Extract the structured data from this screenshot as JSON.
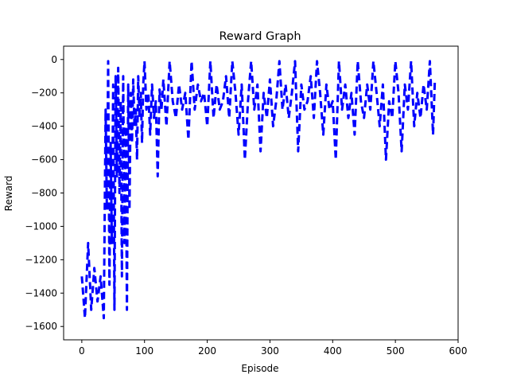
{
  "chart_data": {
    "type": "line",
    "title": "Reward Graph",
    "xlabel": "Episode",
    "ylabel": "Reward",
    "xlim": [
      -29,
      600
    ],
    "ylim": [
      -1680,
      80
    ],
    "xticks": [
      0,
      100,
      200,
      300,
      400,
      500,
      600
    ],
    "yticks": [
      0,
      -200,
      -400,
      -600,
      -800,
      -1000,
      -1200,
      -1400,
      -1600
    ],
    "line_style": "dashed",
    "grid": false,
    "colors": {
      "series": "#0000ff",
      "axes": "#000000",
      "background": "#ffffff"
    },
    "series": [
      {
        "name": "",
        "x": [
          0,
          5,
          10,
          15,
          20,
          25,
          30,
          35,
          38,
          40,
          42,
          44,
          46,
          48,
          50,
          52,
          54,
          56,
          58,
          60,
          62,
          64,
          66,
          68,
          70,
          72,
          74,
          76,
          78,
          80,
          82,
          84,
          86,
          88,
          90,
          92,
          94,
          96,
          98,
          100,
          103,
          106,
          109,
          112,
          115,
          118,
          121,
          124,
          127,
          130,
          135,
          140,
          145,
          150,
          155,
          160,
          165,
          170,
          175,
          180,
          185,
          190,
          195,
          200,
          205,
          210,
          215,
          220,
          225,
          230,
          235,
          240,
          245,
          250,
          255,
          260,
          265,
          270,
          275,
          280,
          285,
          290,
          295,
          300,
          305,
          310,
          315,
          320,
          325,
          330,
          335,
          340,
          345,
          350,
          355,
          360,
          365,
          370,
          375,
          380,
          385,
          390,
          395,
          400,
          405,
          410,
          415,
          420,
          425,
          430,
          435,
          440,
          445,
          450,
          455,
          460,
          465,
          470,
          475,
          480,
          485,
          490,
          495,
          500,
          505,
          510,
          515,
          520,
          525,
          530,
          535,
          540,
          545,
          550,
          555,
          560,
          563
        ],
        "values": [
          -1300,
          -1550,
          -1100,
          -1500,
          -1250,
          -1450,
          -1300,
          -1550,
          -300,
          -900,
          -10,
          -1350,
          -500,
          -1100,
          -150,
          -1500,
          -100,
          -700,
          -50,
          -800,
          -250,
          -1300,
          -100,
          -1100,
          -400,
          -1500,
          -150,
          -900,
          -200,
          -500,
          -120,
          -400,
          -300,
          -600,
          -100,
          -350,
          -200,
          -500,
          -150,
          -10,
          -300,
          -200,
          -450,
          -150,
          -350,
          -250,
          -700,
          -180,
          -300,
          -120,
          -400,
          -10,
          -250,
          -350,
          -150,
          -300,
          -200,
          -480,
          -10,
          -300,
          -150,
          -250,
          -200,
          -400,
          -10,
          -350,
          -150,
          -300,
          -250,
          -100,
          -350,
          -10,
          -200,
          -450,
          -150,
          -600,
          -250,
          -10,
          -300,
          -150,
          -550,
          -200,
          -350,
          -120,
          -400,
          -250,
          -10,
          -300,
          -150,
          -350,
          -200,
          -10,
          -550,
          -150,
          -300,
          -250,
          -100,
          -350,
          -10,
          -200,
          -450,
          -150,
          -300,
          -250,
          -600,
          -10,
          -300,
          -150,
          -350,
          -200,
          -450,
          -10,
          -250,
          -350,
          -150,
          -300,
          -10,
          -200,
          -400,
          -150,
          -600,
          -250,
          -350,
          -10,
          -200,
          -550,
          -150,
          -300,
          -10,
          -400,
          -200,
          -350,
          -150,
          -300,
          -10,
          -450,
          -120
        ]
      }
    ]
  }
}
